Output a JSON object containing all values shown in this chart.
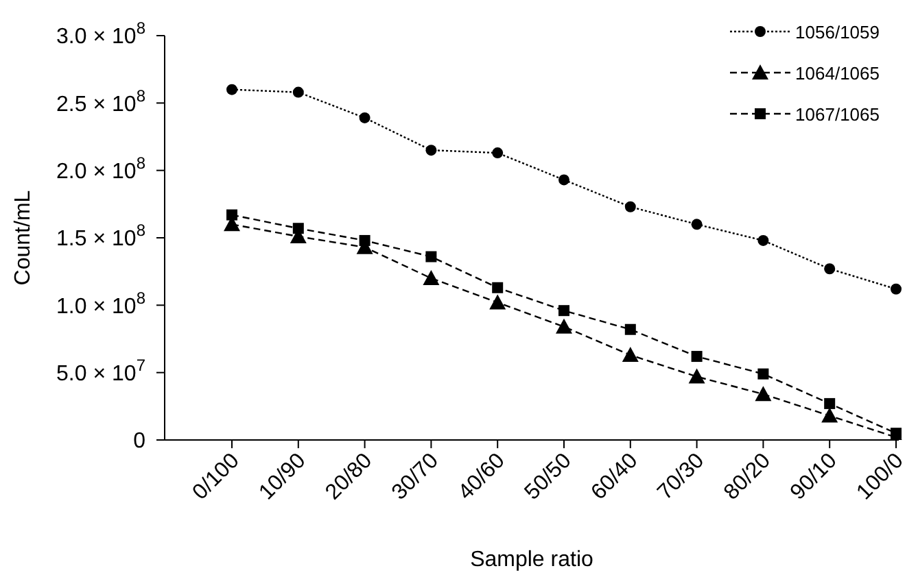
{
  "chart_data": {
    "type": "line",
    "xlabel": "Sample ratio",
    "ylabel": "Count/mL",
    "categories": [
      "0/100",
      "10/90",
      "20/80",
      "30/70",
      "40/60",
      "50/50",
      "60/40",
      "70/30",
      "80/20",
      "90/10",
      "100/0"
    ],
    "series": [
      {
        "name": "1056/1059",
        "color": "#000000",
        "marker": "circle",
        "line_style": "dotted",
        "values": [
          260000000,
          258000000,
          239000000,
          215000000,
          213000000,
          193000000,
          173000000,
          160000000,
          148000000,
          127000000,
          112000000
        ]
      },
      {
        "name": "1064/1065",
        "color": "#000000",
        "marker": "triangle",
        "line_style": "dashed",
        "values": [
          160000000,
          151000000,
          143000000,
          120000000,
          102000000,
          84000000,
          63000000,
          47000000,
          34000000,
          18000000,
          2000000
        ]
      },
      {
        "name": "1067/1065",
        "color": "#000000",
        "marker": "square",
        "line_style": "dashed",
        "values": [
          167000000,
          157000000,
          148000000,
          136000000,
          113000000,
          96000000,
          82000000,
          62000000,
          49000000,
          27000000,
          5000000
        ]
      }
    ],
    "ylim": [
      0,
      300000000
    ],
    "yticks": [
      {
        "value": 0,
        "label": "0"
      },
      {
        "value": 50000000,
        "label": "5.0 × 10$^{7}$"
      },
      {
        "value": 100000000,
        "label": "1.0 × 10$^{8}$"
      },
      {
        "value": 150000000,
        "label": "1.5 × 10$^{8}$"
      },
      {
        "value": 200000000,
        "label": "2.0 × 10$^{8}$"
      },
      {
        "value": 250000000,
        "label": "2.5 × 10$^{8}$"
      },
      {
        "value": 300000000,
        "label": "3.0 × 10$^{8}$"
      }
    ],
    "grid": false,
    "legend": "top right"
  }
}
